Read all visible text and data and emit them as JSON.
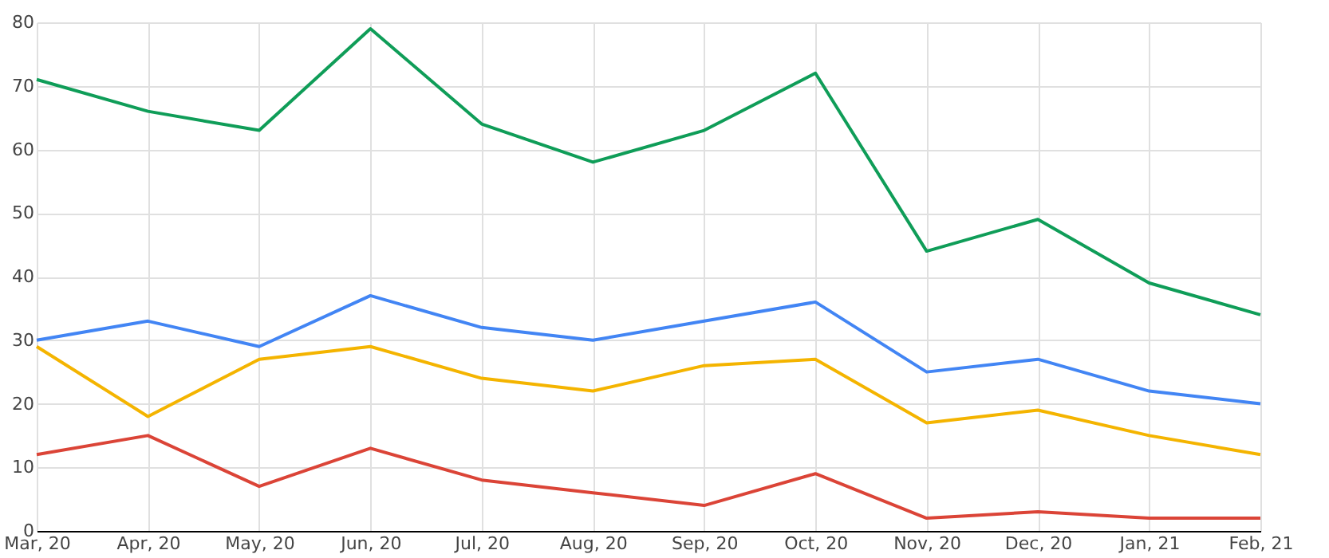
{
  "chart_data": {
    "type": "line",
    "categories": [
      "Mar, 20",
      "Apr, 20",
      "May, 20",
      "Jun, 20",
      "Jul, 20",
      "Aug, 20",
      "Sep, 20",
      "Oct, 20",
      "Nov, 20",
      "Dec, 20",
      "Jan, 21",
      "Feb, 21"
    ],
    "series": [
      {
        "color": "#0f9d58",
        "values": [
          71,
          66,
          63,
          79,
          64,
          58,
          63,
          72,
          44,
          49,
          39,
          34
        ]
      },
      {
        "color": "#4285f4",
        "values": [
          30,
          33,
          29,
          37,
          32,
          30,
          33,
          36,
          25,
          27,
          22,
          20
        ]
      },
      {
        "color": "#f4b400",
        "values": [
          29,
          18,
          27,
          29,
          24,
          22,
          26,
          27,
          17,
          19,
          15,
          12
        ]
      },
      {
        "color": "#db4437",
        "values": [
          12,
          15,
          7,
          13,
          8,
          6,
          4,
          9,
          2,
          3,
          2,
          2
        ]
      }
    ],
    "ylim": [
      0,
      80
    ],
    "yticks": [
      0,
      10,
      20,
      30,
      40,
      50,
      60,
      70,
      80
    ],
    "grid": true,
    "legend": false,
    "marker": "none",
    "line_style": "solid"
  }
}
